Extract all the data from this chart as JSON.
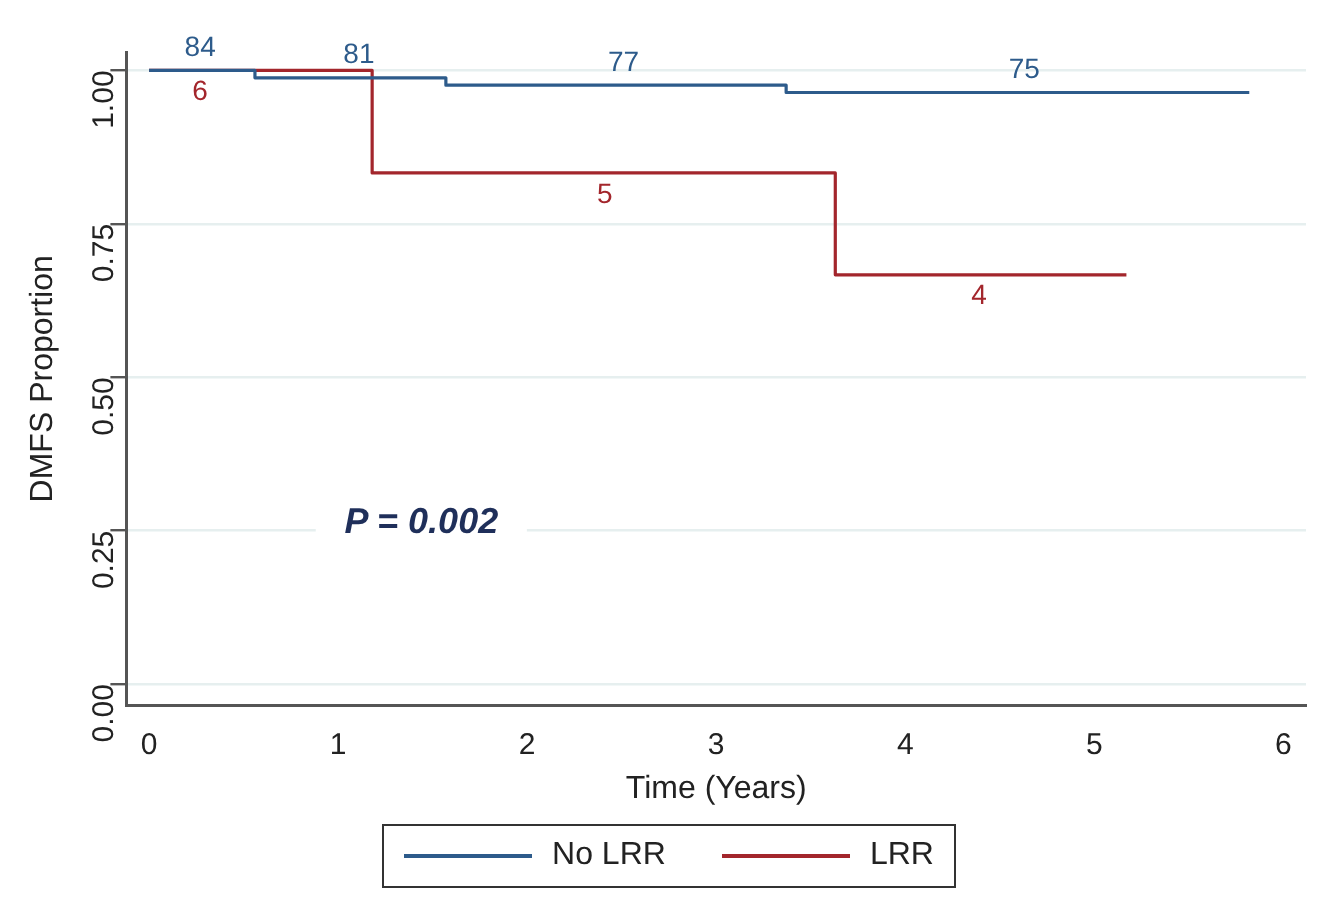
{
  "chart_data": {
    "type": "step",
    "xlabel": "Time (Years)",
    "ylabel": "DMFS Proportion",
    "series": [
      {
        "name": "No LRR",
        "color": "#2d5b8b",
        "x": [
          0,
          0.56,
          1.57,
          3.37,
          5.82
        ],
        "values": [
          1,
          0.988,
          0.976,
          0.964,
          0.964
        ]
      },
      {
        "name": "LRR",
        "color": "#a3262c",
        "x": [
          0,
          1.18,
          3.63,
          5.17
        ],
        "values": [
          1,
          0.833,
          0.667,
          0.667
        ]
      }
    ],
    "xlim": [
      -0.12,
      6.12
    ],
    "xticks": [
      0,
      1,
      2,
      3,
      4,
      5,
      6
    ],
    "ylim": [
      -0.035,
      1.03
    ],
    "yticks": [
      {
        "value": 0,
        "label": "0.00"
      },
      {
        "value": 0.25,
        "label": "0.25"
      },
      {
        "value": 0.5,
        "label": "0.50"
      },
      {
        "value": 0.75,
        "label": "0.75"
      },
      {
        "value": 1,
        "label": "1.00"
      }
    ],
    "grid": "y",
    "legend": "bottom",
    "marker": "none",
    "line_style": "solid",
    "annotations": [
      {
        "text": "84",
        "x": 0.27,
        "y": 1
      },
      {
        "text": "6",
        "x": 0.27,
        "y": 1
      },
      {
        "text": "81",
        "x": 1.11,
        "y": 0.988
      },
      {
        "text": "77",
        "x": 2.51,
        "y": 0.976
      },
      {
        "text": "75",
        "x": 4.63,
        "y": 0.964
      },
      {
        "text": "5",
        "x": 2.41,
        "y": 0.833
      },
      {
        "text": "4",
        "x": 4.39,
        "y": 0.667
      },
      "P = 0.002"
    ]
  }
}
